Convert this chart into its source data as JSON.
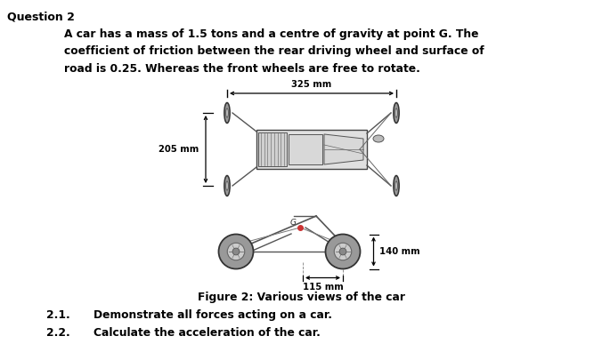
{
  "title": "Question 2",
  "body_line1": "A car has a mass of 1.5 tons and a centre of gravity at point G. The",
  "body_line2": "coefficient of friction between the rear driving wheel and surface of",
  "body_line3": "road is 0.25. Whereas the front wheels are free to rotate.",
  "figure_caption": "Figure 2: Various views of the car",
  "dim_325": "325 mm",
  "dim_205": "205 mm",
  "dim_140": "140 mm",
  "dim_115": "115 mm",
  "sub_21": "2.1.",
  "sub_22": "2.2.",
  "task_21": "Demonstrate all forces acting on a car.",
  "task_22": "Calculate the acceleration of the car.",
  "bg_color": "#ffffff",
  "text_color": "#000000",
  "fig_width": 6.76,
  "fig_height": 3.96,
  "dpi": 100,
  "title_fs": 9,
  "body_fs": 8.8,
  "caption_fs": 8.8,
  "dim_fs": 7.2,
  "task_fs": 8.8,
  "car_line_color": "#555555",
  "wheel_color": "#999999",
  "wheel_edge": "#333333",
  "dim_arrow_color": "#000000"
}
